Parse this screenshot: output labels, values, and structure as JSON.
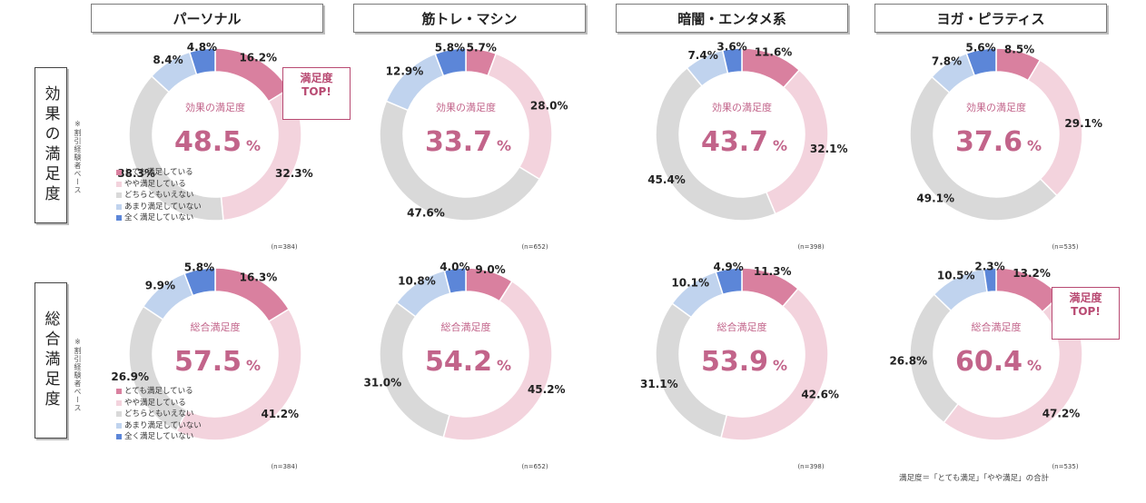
{
  "columns": [
    "パーソナル",
    "筋トレ・マシン",
    "暗闇・エンタメ系",
    "ヨガ・ピラティス"
  ],
  "rows": [
    {
      "label": "効果の満足度",
      "center_title": "効果の満足度",
      "note": "※割引経験者ベース"
    },
    {
      "label": "総合満足度",
      "center_title": "総合満足度",
      "note": "※割引経験者ベース"
    }
  ],
  "legend": [
    "とても満足している",
    "やや満足している",
    "どちらともいえない",
    "あまり満足していない",
    "全く満足していない"
  ],
  "colors": [
    "#d9809f",
    "#f3d3dd",
    "#d9d9d9",
    "#c0d3ee",
    "#5c86d8"
  ],
  "callout": {
    "line1": "満足度",
    "line2": "TOP!"
  },
  "footnote": "満足度＝「とても満足」「やや満足」の合計",
  "chart_data": [
    {
      "type": "pie",
      "title": "",
      "row": "効果の満足度",
      "column": "パーソナル",
      "center_value": "48.5",
      "unit": "%",
      "n_label": "(n=384)",
      "categories": [
        "とても満足している",
        "やや満足している",
        "どちらともいえない",
        "あまり満足していない",
        "全く満足していない"
      ],
      "values": [
        16.2,
        32.3,
        38.3,
        8.4,
        4.8
      ]
    },
    {
      "type": "pie",
      "title": "",
      "row": "効果の満足度",
      "column": "筋トレ・マシン",
      "center_value": "33.7",
      "unit": "%",
      "n_label": "(n=652)",
      "categories": [
        "とても満足している",
        "やや満足している",
        "どちらともいえない",
        "あまり満足していない",
        "全く満足していない"
      ],
      "values": [
        5.7,
        28.0,
        47.6,
        12.9,
        5.8
      ]
    },
    {
      "type": "pie",
      "title": "",
      "row": "効果の満足度",
      "column": "暗闇・エンタメ系",
      "center_value": "43.7",
      "unit": "%",
      "n_label": "(n=398)",
      "categories": [
        "とても満足している",
        "やや満足している",
        "どちらともいえない",
        "あまり満足していない",
        "全く満足していない"
      ],
      "values": [
        11.6,
        32.1,
        45.4,
        7.4,
        3.6
      ]
    },
    {
      "type": "pie",
      "title": "",
      "row": "効果の満足度",
      "column": "ヨガ・ピラティス",
      "center_value": "37.6",
      "unit": "%",
      "n_label": "(n=535)",
      "categories": [
        "とても満足している",
        "やや満足している",
        "どちらともいえない",
        "あまり満足していない",
        "全く満足していない"
      ],
      "values": [
        8.5,
        29.1,
        49.1,
        7.8,
        5.6
      ]
    },
    {
      "type": "pie",
      "title": "",
      "row": "総合満足度",
      "column": "パーソナル",
      "center_value": "57.5",
      "unit": "%",
      "n_label": "(n=384)",
      "categories": [
        "とても満足している",
        "やや満足している",
        "どちらともいえない",
        "あまり満足していない",
        "全く満足していない"
      ],
      "values": [
        16.3,
        41.2,
        26.9,
        9.9,
        5.8
      ]
    },
    {
      "type": "pie",
      "title": "",
      "row": "総合満足度",
      "column": "筋トレ・マシン",
      "center_value": "54.2",
      "unit": "%",
      "n_label": "(n=652)",
      "categories": [
        "とても満足している",
        "やや満足している",
        "どちらともいえない",
        "あまり満足していない",
        "全く満足していない"
      ],
      "values": [
        9.0,
        45.2,
        31.0,
        10.8,
        4.0
      ]
    },
    {
      "type": "pie",
      "title": "",
      "row": "総合満足度",
      "column": "暗闇・エンタメ系",
      "center_value": "53.9",
      "unit": "%",
      "n_label": "(n=398)",
      "categories": [
        "とても満足している",
        "やや満足している",
        "どちらともいえない",
        "あまり満足していない",
        "全く満足していない"
      ],
      "values": [
        11.3,
        42.6,
        31.1,
        10.1,
        4.9
      ]
    },
    {
      "type": "pie",
      "title": "",
      "row": "総合満足度",
      "column": "ヨガ・ピラティス",
      "center_value": "60.4",
      "unit": "%",
      "n_label": "(n=535)",
      "categories": [
        "とても満足している",
        "やや満足している",
        "どちらともいえない",
        "あまり満足していない",
        "全く満足していない"
      ],
      "values": [
        13.2,
        47.2,
        26.8,
        10.5,
        2.3
      ]
    }
  ]
}
